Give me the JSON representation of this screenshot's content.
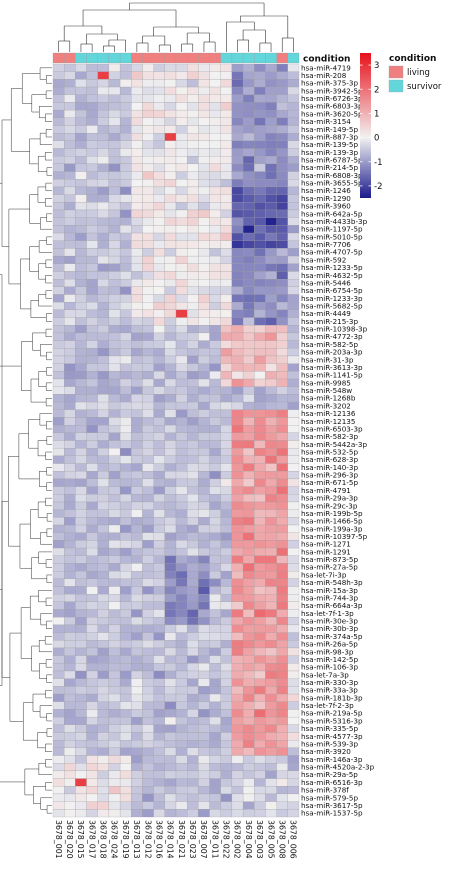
{
  "chart_data": {
    "type": "heatmap",
    "annotation_title": "condition",
    "legend": {
      "condition_title": "condition",
      "condition_levels": [
        {
          "label": "living",
          "color": "#F08080"
        },
        {
          "label": "survivor",
          "color": "#62D6DB"
        }
      ],
      "color_scale": {
        "ticks": [
          3,
          2,
          1,
          0,
          -1,
          -2
        ],
        "tick_labels": [
          "3",
          "2",
          "1",
          "0",
          "-1",
          "-2"
        ],
        "low_color": "#1A1A8C",
        "mid_color": "#F2F2F2",
        "high_color": "#E8111A",
        "range": [
          -2.5,
          3.5
        ]
      }
    },
    "columns": [
      "3678_001",
      "3678_020",
      "3678_015",
      "3678_017",
      "3678_018",
      "3678_024",
      "3678_019",
      "3678_013",
      "3678_012",
      "3678_016",
      "3678_014",
      "3678_021",
      "3678_023",
      "3678_007",
      "3678_011",
      "3678_022",
      "3678_002",
      "3678_004",
      "3678_003",
      "3678_005",
      "3678_008",
      "3678_006"
    ],
    "column_condition": [
      "living",
      "living",
      "survivor",
      "survivor",
      "survivor",
      "survivor",
      "survivor",
      "living",
      "living",
      "living",
      "living",
      "living",
      "living",
      "living",
      "living",
      "survivor",
      "survivor",
      "survivor",
      "survivor",
      "survivor",
      "living",
      "survivor"
    ],
    "rows": [
      "hsa-miR-4719",
      "hsa-miR-208",
      "hsa-miR-375-3p",
      "hsa-miR-3942-5p",
      "hsa-miR-6726-3p",
      "hsa-miR-6803-3p",
      "hsa-miR-3620-5p",
      "hsa-miR-3154",
      "hsa-miR-149-5p",
      "hsa-miR-887-3p",
      "hsa-miR-139-5p",
      "hsa-miR-139-3p",
      "hsa-miR-6787-5p",
      "hsa-miR-214-5p",
      "hsa-miR-6808-3p",
      "hsa-miR-3655-5p",
      "hsa-miR-1246",
      "hsa-miR-1290",
      "hsa-miR-3960",
      "hsa-miR-642a-5p",
      "hsa-miR-4433b-3p",
      "hsa-miR-1197-5p",
      "hsa-miR-5010-5p",
      "hsa-miR-7706",
      "hsa-miR-4707-5p",
      "hsa-miR-592",
      "hsa-miR-1233-5p",
      "hsa-miR-4632-5p",
      "hsa-miR-5446",
      "hsa-miR-6754-5p",
      "hsa-miR-1233-3p",
      "hsa-miR-5682-5p",
      "hsa-miR-4449",
      "hsa-miR-215-3p",
      "hsa-miR-10398-3p",
      "hsa-miR-4772-3p",
      "hsa-miR-582-5p",
      "hsa-miR-203a-3p",
      "hsa-miR-31-3p",
      "hsa-miR-3613-3p",
      "hsa-miR-1141-5p",
      "hsa-miR-9985",
      "hsa-miR-548w",
      "hsa-miR-1268b",
      "hsa-miR-3202",
      "hsa-miR-12136",
      "hsa-miR-12135",
      "hsa-miR-6503-3p",
      "hsa-miR-582-3p",
      "hsa-miR-5442a-3p",
      "hsa-miR-532-5p",
      "hsa-miR-628-3p",
      "hsa-miR-140-3p",
      "hsa-miR-296-3p",
      "hsa-miR-671-5p",
      "hsa-miR-4791",
      "hsa-miR-29a-3p",
      "hsa-miR-29c-3p",
      "hsa-miR-199b-5p",
      "hsa-miR-1466-5p",
      "hsa-miR-199a-3p",
      "hsa-miR-10397-5p",
      "hsa-miR-1271",
      "hsa-miR-1291",
      "hsa-miR-873-5p",
      "hsa-miR-27a-5p",
      "hsa-let-7i-3p",
      "hsa-miR-548h-3p",
      "hsa-miR-15a-3p",
      "hsa-miR-744-3p",
      "hsa-miR-664a-3p",
      "hsa-let-7f-1-3p",
      "hsa-miR-30e-3p",
      "hsa-miR-30b-3p",
      "hsa-miR-374a-5p",
      "hsa-miR-26a-5p",
      "hsa-miR-98-3p",
      "hsa-miR-142-5p",
      "hsa-miR-106-3p",
      "hsa-let-7a-3p",
      "hsa-miR-330-3p",
      "hsa-miR-33a-3p",
      "hsa-miR-181b-3p",
      "hsa-let-7f-2-3p",
      "hsa-miR-219a-5p",
      "hsa-miR-5316-3p",
      "hsa-miR-335-5p",
      "hsa-miR-4577-3p",
      "hsa-miR-539-3p",
      "hsa-miR-3920",
      "hsa-miR-146a-3p",
      "hsa-miR-4520a-2-3p",
      "hsa-miR-29a-5p",
      "hsa-miR-6516-3p",
      "hsa-miR-378f",
      "hsa-miR-579-5p",
      "hsa-miR-3617-5p",
      "hsa-miR-1537-5p"
    ]
  }
}
